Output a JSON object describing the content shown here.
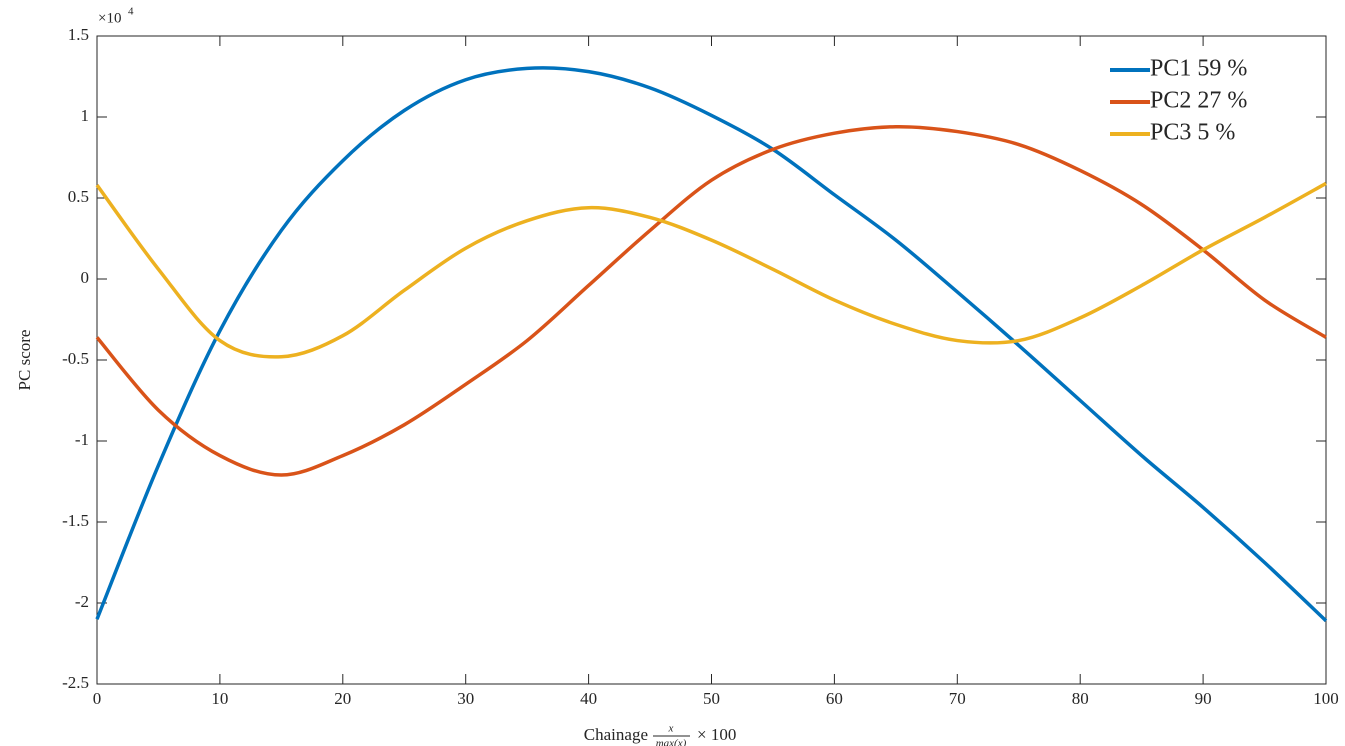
{
  "chart_data": {
    "type": "line",
    "y_exponent": {
      "base": "×10",
      "power": "4"
    },
    "ylabel": "PC score",
    "xlabel": {
      "text": "Chainage",
      "numerator": "x",
      "denominator": "max(x)",
      "suffix": "× 100"
    },
    "x": [
      0,
      5,
      10,
      15,
      20,
      25,
      30,
      35,
      40,
      45,
      50,
      55,
      60,
      65,
      70,
      75,
      80,
      85,
      90,
      95,
      100
    ],
    "series": [
      {
        "name": "PC1 59 %",
        "color": "#0072BD",
        "values": [
          -2.1,
          -1.15,
          -0.32,
          0.3,
          0.73,
          1.04,
          1.23,
          1.3,
          1.28,
          1.18,
          1.01,
          0.8,
          0.52,
          0.24,
          -0.08,
          -0.41,
          -0.75,
          -1.09,
          -1.41,
          -1.75,
          -2.11
        ]
      },
      {
        "name": "PC2 27 %",
        "color": "#D95319",
        "values": [
          -0.36,
          -0.81,
          -1.09,
          -1.21,
          -1.09,
          -0.9,
          -0.65,
          -0.38,
          -0.04,
          0.3,
          0.61,
          0.8,
          0.9,
          0.94,
          0.91,
          0.83,
          0.67,
          0.46,
          0.18,
          -0.13,
          -0.36
        ]
      },
      {
        "name": "PC3 5 %",
        "color": "#EDB120",
        "values": [
          0.58,
          0.06,
          -0.38,
          -0.48,
          -0.35,
          -0.07,
          0.19,
          0.36,
          0.44,
          0.38,
          0.24,
          0.06,
          -0.13,
          -0.28,
          -0.38,
          -0.38,
          -0.24,
          -0.04,
          0.18,
          0.38,
          0.59
        ]
      }
    ],
    "xlim": [
      0,
      100
    ],
    "xticks": [
      0,
      10,
      20,
      30,
      40,
      50,
      60,
      70,
      80,
      90,
      100
    ],
    "ylim": [
      -2.5,
      1.5
    ],
    "yticks": [
      -2.5,
      -2,
      -1.5,
      -1,
      -0.5,
      0,
      0.5,
      1,
      1.5
    ],
    "legend": "top-right",
    "grid": false
  }
}
